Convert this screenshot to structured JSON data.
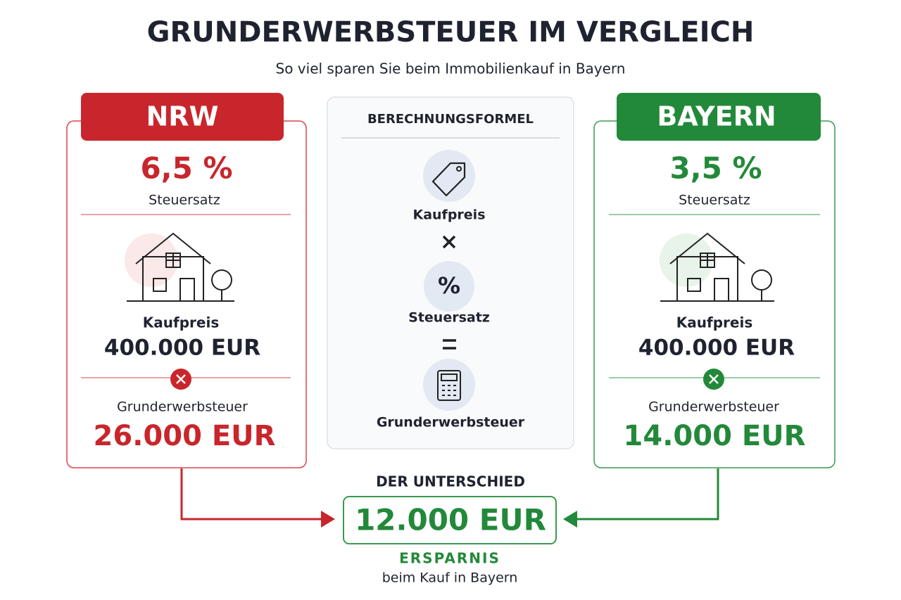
{
  "header": {
    "title": "GRUNDERWERBSTEUER IM VERGLEICH",
    "subtitle": "So viel sparen Sie beim Immobilienkauf in Bayern"
  },
  "left": {
    "label": "NRW",
    "rate": "6,5 %",
    "rate_label": "Steuersatz",
    "price_label": "Kaufpreis",
    "price": "400.000 EUR",
    "tax_label": "Grunderwerbsteuer",
    "tax": "26.000 EUR"
  },
  "formula": {
    "heading": "BERECHNUNGSFORMEL",
    "steps": [
      "Kaufpreis",
      "Steuersatz",
      "Grunderwerbsteuer"
    ],
    "percent_symbol": "%"
  },
  "right": {
    "label": "BAYERN",
    "rate": "3,5 %",
    "rate_label": "Steuersatz",
    "price_label": "Kaufpreis",
    "price": "400.000 EUR",
    "tax_label": "Grunderwerbsteuer",
    "tax": "14.000 EUR"
  },
  "result": {
    "heading": "DER UNTERSCHIED",
    "amount": "12.000 EUR",
    "label": "ERSPARNIS",
    "sublabel": "beim Kauf in Bayern"
  }
}
